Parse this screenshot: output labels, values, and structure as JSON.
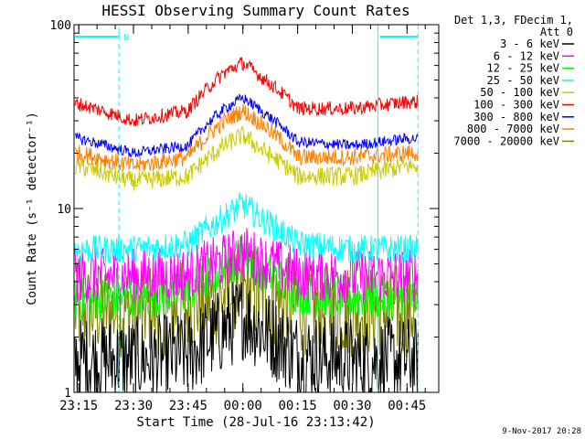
{
  "chart_data": {
    "type": "line",
    "title": "HESSI Observing Summary Count Rates",
    "xlabel": "Start Time (28-Jul-16 23:13:42)",
    "ylabel": "Count Rate (s⁻¹ detector⁻¹)",
    "y_scale": "log",
    "ylim": [
      1,
      100
    ],
    "y_ticks": [
      "1",
      "10",
      "100"
    ],
    "x_ticks": [
      "23:15",
      "23:30",
      "23:45",
      "00:00",
      "00:15",
      "00:30",
      "00:45"
    ],
    "grid": false,
    "header": [
      "Det 1,3, FDecim 1,",
      "Att 0"
    ],
    "timestamp": "9-Nov-2017 20:28",
    "flag_label": "N",
    "series": [
      {
        "name": "3 - 6 keV",
        "color": "#000000",
        "x": [
          "23:15",
          "23:30",
          "23:45",
          "23:55",
          "00:00",
          "00:05",
          "00:15",
          "00:30",
          "00:45"
        ],
        "y": [
          1.5,
          1.5,
          1.6,
          2.2,
          2.6,
          2.2,
          1.6,
          1.5,
          1.5
        ]
      },
      {
        "name": "6 - 12 keV",
        "color": "#ff00ff",
        "x": [
          "23:15",
          "23:30",
          "23:45",
          "23:55",
          "00:00",
          "00:05",
          "00:15",
          "00:30",
          "00:45"
        ],
        "y": [
          4.3,
          4.3,
          4.4,
          5.2,
          5.8,
          5.2,
          4.4,
          4.3,
          4.3
        ]
      },
      {
        "name": "12 - 25 keV",
        "color": "#00ff00",
        "x": [
          "23:15",
          "23:30",
          "23:45",
          "23:55",
          "00:00",
          "00:05",
          "00:15",
          "00:30",
          "00:45"
        ],
        "y": [
          3.2,
          3.3,
          3.5,
          4.8,
          5.6,
          4.7,
          3.5,
          3.3,
          3.3
        ]
      },
      {
        "name": "25 - 50 keV",
        "color": "#00ffff",
        "x": [
          "23:15",
          "23:30",
          "23:45",
          "23:55",
          "00:00",
          "00:05",
          "00:15",
          "00:30",
          "00:45"
        ],
        "y": [
          6.0,
          6.0,
          6.4,
          9.0,
          10.5,
          8.8,
          6.4,
          6.0,
          6.0
        ]
      },
      {
        "name": "50 - 100 keV",
        "color": "#cccc00",
        "x": [
          "23:15",
          "23:30",
          "23:45",
          "23:55",
          "00:00",
          "00:05",
          "00:15",
          "00:30",
          "00:45"
        ],
        "y": [
          17,
          14,
          15,
          22,
          25,
          21,
          15,
          15,
          17
        ]
      },
      {
        "name": "100 - 300 keV",
        "color": "#ff0000",
        "x": [
          "23:15",
          "23:30",
          "23:45",
          "23:55",
          "00:00",
          "00:05",
          "00:15",
          "00:30",
          "00:45"
        ],
        "y": [
          37,
          30,
          34,
          55,
          62,
          52,
          35,
          35,
          38
        ]
      },
      {
        "name": "300 - 800 keV",
        "color": "#0000ff",
        "x": [
          "23:15",
          "23:30",
          "23:45",
          "23:55",
          "00:00",
          "00:05",
          "00:15",
          "00:30",
          "00:45"
        ],
        "y": [
          24,
          20,
          22,
          35,
          40,
          34,
          23,
          22,
          24
        ]
      },
      {
        "name": "800 - 7000 keV",
        "color": "#ff8000",
        "x": [
          "23:15",
          "23:30",
          "23:45",
          "23:55",
          "00:00",
          "00:05",
          "00:15",
          "00:30",
          "00:45"
        ],
        "y": [
          20,
          17,
          19,
          30,
          34,
          29,
          19,
          19,
          20
        ]
      },
      {
        "name": "7000 - 20000 keV",
        "color": "#808000",
        "x": [
          "23:15",
          "23:30",
          "23:45",
          "23:55",
          "00:00",
          "00:05",
          "00:15",
          "00:30",
          "00:45"
        ],
        "y": [
          2.8,
          2.8,
          2.9,
          3.3,
          3.6,
          3.3,
          2.9,
          2.8,
          2.8
        ]
      }
    ]
  }
}
